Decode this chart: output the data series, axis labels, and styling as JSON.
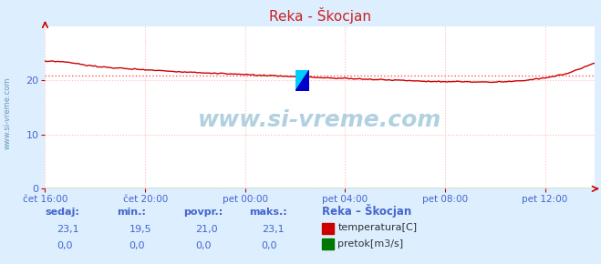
{
  "title": "Reka - Škocjan",
  "bg_color": "#ddeeff",
  "plot_bg_color": "#ffffff",
  "grid_color": "#ffbbbb",
  "x_labels": [
    "čet 16:00",
    "čet 20:00",
    "pet 00:00",
    "pet 04:00",
    "pet 08:00",
    "pet 12:00"
  ],
  "x_ticks_norm": [
    0.0,
    0.182,
    0.364,
    0.545,
    0.727,
    0.909
  ],
  "y_min": 0,
  "y_max": 30,
  "y_ticks": [
    0,
    10,
    20
  ],
  "avg_line": 21.0,
  "temp_color": "#cc0000",
  "flow_color": "#007700",
  "avg_line_color": "#ff5555",
  "watermark": "www.si-vreme.com",
  "label_color": "#4466cc",
  "title_color": "#cc2222",
  "left_text": "www.si-vreme.com",
  "stat_headers": [
    "sedaj:",
    "min.:",
    "povpr.:",
    "maks.:"
  ],
  "stat_row1": [
    "23,1",
    "19,5",
    "21,0",
    "23,1"
  ],
  "stat_row2": [
    "0,0",
    "0,0",
    "0,0",
    "0,0"
  ],
  "legend_title": "Reka – Škocjan",
  "legend_labels": [
    "temperatura[C]",
    "pretok[m3/s]"
  ],
  "legend_colors": [
    "#cc0000",
    "#007700"
  ]
}
